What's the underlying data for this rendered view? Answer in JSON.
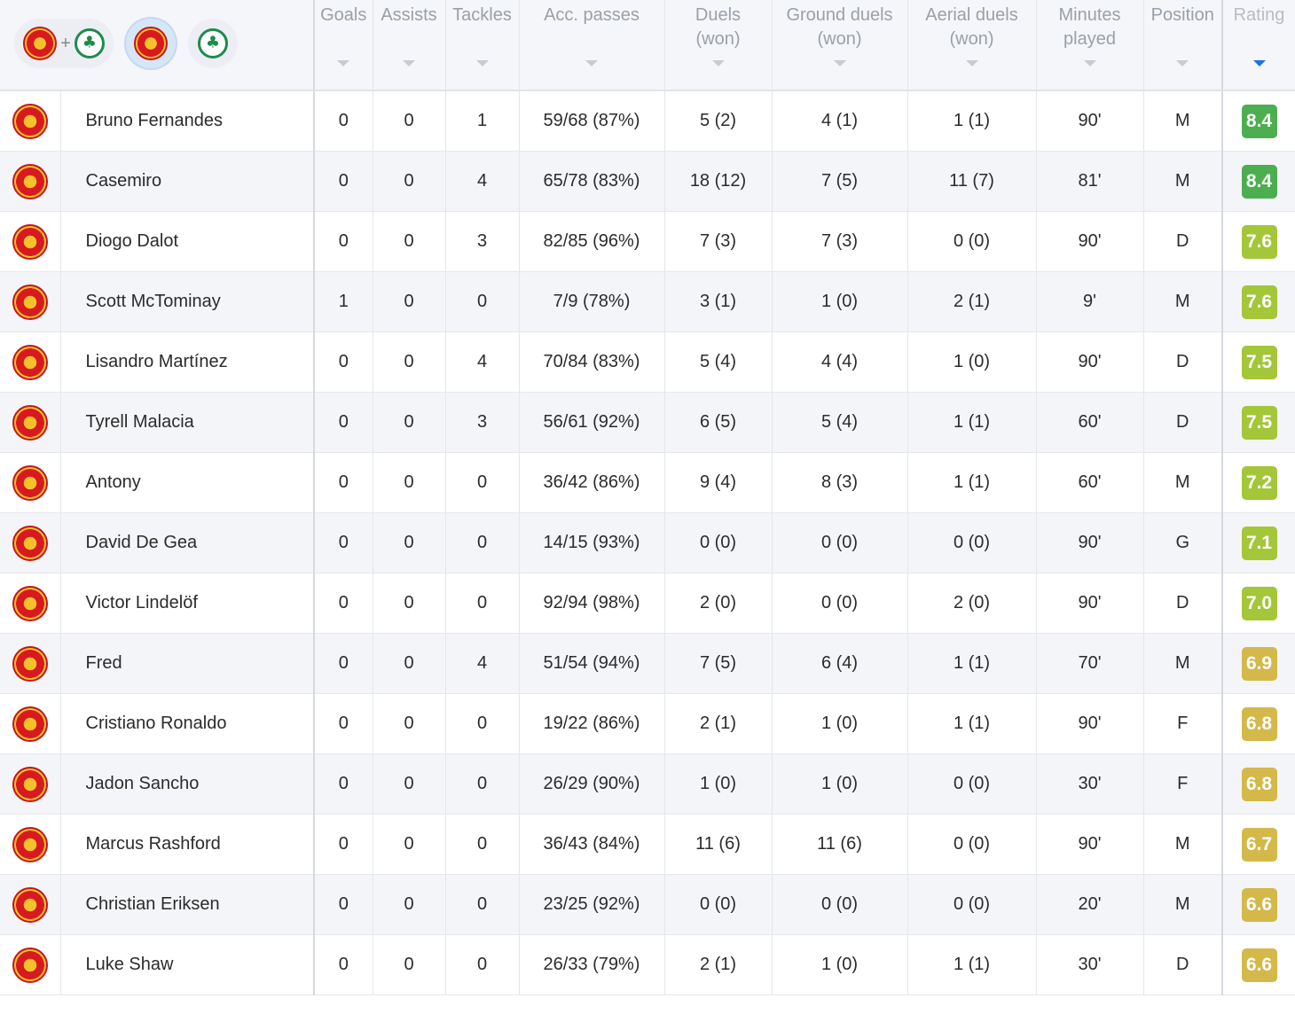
{
  "header": {
    "columns": [
      {
        "key": "goals",
        "label": "Goals"
      },
      {
        "key": "assists",
        "label": "Assists"
      },
      {
        "key": "tackles",
        "label": "Tackles"
      },
      {
        "key": "acc_passes",
        "label": "Acc. passes"
      },
      {
        "key": "duels",
        "label": "Duels\n(won)"
      },
      {
        "key": "ground_duels",
        "label": "Ground duels\n(won)"
      },
      {
        "key": "aerial_duels",
        "label": "Aerial duels\n(won)"
      },
      {
        "key": "minutes",
        "label": "Minutes\nplayed"
      },
      {
        "key": "position",
        "label": "Position"
      },
      {
        "key": "rating",
        "label": "Rating"
      }
    ],
    "sorted_by": "rating",
    "team_filters": [
      {
        "name": "both-teams",
        "icons": [
          "man-utd-crest-icon",
          "panathinaikos-crest-icon"
        ]
      },
      {
        "name": "man-utd",
        "icons": [
          "man-utd-crest-icon"
        ],
        "selected": true
      },
      {
        "name": "panathinaikos",
        "icons": [
          "panathinaikos-crest-icon"
        ]
      }
    ]
  },
  "colors": {
    "rating_dark_green": "#4cae4f",
    "rating_light_green": "#a4c639",
    "rating_yellow": "#d4b84a",
    "sort_active": "#1a73e8"
  },
  "rows": [
    {
      "name": "Bruno Fernandes",
      "goals": "0",
      "assists": "0",
      "tackles": "1",
      "acc_passes": "59/68 (87%)",
      "duels": "5 (2)",
      "ground_duels": "4 (1)",
      "aerial_duels": "1 (1)",
      "minutes": "90'",
      "position": "M",
      "rating": "8.4",
      "rating_color": "#4cae4f"
    },
    {
      "name": "Casemiro",
      "goals": "0",
      "assists": "0",
      "tackles": "4",
      "acc_passes": "65/78 (83%)",
      "duels": "18 (12)",
      "ground_duels": "7 (5)",
      "aerial_duels": "11 (7)",
      "minutes": "81'",
      "position": "M",
      "rating": "8.4",
      "rating_color": "#4cae4f"
    },
    {
      "name": "Diogo Dalot",
      "goals": "0",
      "assists": "0",
      "tackles": "3",
      "acc_passes": "82/85 (96%)",
      "duels": "7 (3)",
      "ground_duels": "7 (3)",
      "aerial_duels": "0 (0)",
      "minutes": "90'",
      "position": "D",
      "rating": "7.6",
      "rating_color": "#a4c639"
    },
    {
      "name": "Scott McTominay",
      "goals": "1",
      "assists": "0",
      "tackles": "0",
      "acc_passes": "7/9 (78%)",
      "duels": "3 (1)",
      "ground_duels": "1 (0)",
      "aerial_duels": "2 (1)",
      "minutes": "9'",
      "position": "M",
      "rating": "7.6",
      "rating_color": "#a4c639"
    },
    {
      "name": "Lisandro Martínez",
      "goals": "0",
      "assists": "0",
      "tackles": "4",
      "acc_passes": "70/84 (83%)",
      "duels": "5 (4)",
      "ground_duels": "4 (4)",
      "aerial_duels": "1 (0)",
      "minutes": "90'",
      "position": "D",
      "rating": "7.5",
      "rating_color": "#a4c639"
    },
    {
      "name": "Tyrell Malacia",
      "goals": "0",
      "assists": "0",
      "tackles": "3",
      "acc_passes": "56/61 (92%)",
      "duels": "6 (5)",
      "ground_duels": "5 (4)",
      "aerial_duels": "1 (1)",
      "minutes": "60'",
      "position": "D",
      "rating": "7.5",
      "rating_color": "#a4c639"
    },
    {
      "name": "Antony",
      "goals": "0",
      "assists": "0",
      "tackles": "0",
      "acc_passes": "36/42 (86%)",
      "duels": "9 (4)",
      "ground_duels": "8 (3)",
      "aerial_duels": "1 (1)",
      "minutes": "60'",
      "position": "M",
      "rating": "7.2",
      "rating_color": "#a4c639"
    },
    {
      "name": "David De Gea",
      "goals": "0",
      "assists": "0",
      "tackles": "0",
      "acc_passes": "14/15 (93%)",
      "duels": "0 (0)",
      "ground_duels": "0 (0)",
      "aerial_duels": "0 (0)",
      "minutes": "90'",
      "position": "G",
      "rating": "7.1",
      "rating_color": "#a4c639"
    },
    {
      "name": "Victor Lindelöf",
      "goals": "0",
      "assists": "0",
      "tackles": "0",
      "acc_passes": "92/94 (98%)",
      "duels": "2 (0)",
      "ground_duels": "0 (0)",
      "aerial_duels": "2 (0)",
      "minutes": "90'",
      "position": "D",
      "rating": "7.0",
      "rating_color": "#a4c639"
    },
    {
      "name": "Fred",
      "goals": "0",
      "assists": "0",
      "tackles": "4",
      "acc_passes": "51/54 (94%)",
      "duels": "7 (5)",
      "ground_duels": "6 (4)",
      "aerial_duels": "1 (1)",
      "minutes": "70'",
      "position": "M",
      "rating": "6.9",
      "rating_color": "#d4b84a"
    },
    {
      "name": "Cristiano Ronaldo",
      "goals": "0",
      "assists": "0",
      "tackles": "0",
      "acc_passes": "19/22 (86%)",
      "duels": "2 (1)",
      "ground_duels": "1 (0)",
      "aerial_duels": "1 (1)",
      "minutes": "90'",
      "position": "F",
      "rating": "6.8",
      "rating_color": "#d4b84a"
    },
    {
      "name": "Jadon Sancho",
      "goals": "0",
      "assists": "0",
      "tackles": "0",
      "acc_passes": "26/29 (90%)",
      "duels": "1 (0)",
      "ground_duels": "1 (0)",
      "aerial_duels": "0 (0)",
      "minutes": "30'",
      "position": "F",
      "rating": "6.8",
      "rating_color": "#d4b84a"
    },
    {
      "name": "Marcus Rashford",
      "goals": "0",
      "assists": "0",
      "tackles": "0",
      "acc_passes": "36/43 (84%)",
      "duels": "11 (6)",
      "ground_duels": "11 (6)",
      "aerial_duels": "0 (0)",
      "minutes": "90'",
      "position": "M",
      "rating": "6.7",
      "rating_color": "#d4b84a"
    },
    {
      "name": "Christian Eriksen",
      "goals": "0",
      "assists": "0",
      "tackles": "0",
      "acc_passes": "23/25 (92%)",
      "duels": "0 (0)",
      "ground_duels": "0 (0)",
      "aerial_duels": "0 (0)",
      "minutes": "20'",
      "position": "M",
      "rating": "6.6",
      "rating_color": "#d4b84a"
    },
    {
      "name": "Luke Shaw",
      "goals": "0",
      "assists": "0",
      "tackles": "0",
      "acc_passes": "26/33 (79%)",
      "duels": "2 (1)",
      "ground_duels": "1 (0)",
      "aerial_duels": "1 (1)",
      "minutes": "30'",
      "position": "D",
      "rating": "6.6",
      "rating_color": "#d4b84a"
    }
  ]
}
